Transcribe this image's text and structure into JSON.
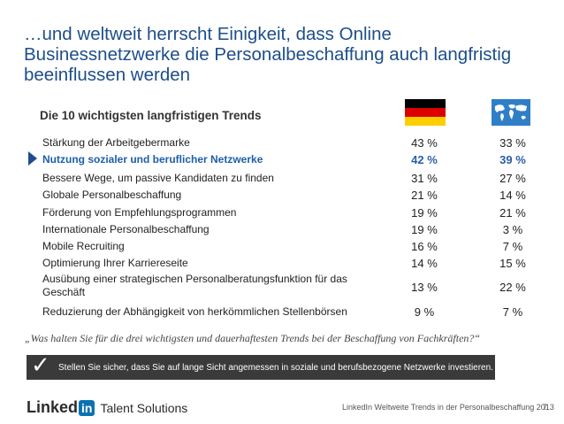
{
  "title": {
    "lines": [
      "…und weltweit herrscht Einigkeit, dass Online",
      "Businessnetzwerke die Personalbeschaffung auch langfristig",
      "beeinflussen werden"
    ]
  },
  "subheading": "Die 10 wichtigsten langfristigen Trends",
  "colors": {
    "accent": "#1d4e8a",
    "highlight": "#2a5fa8",
    "banner": "#3a3a3a",
    "linkedin_blue": "#0a73b1"
  },
  "rows": [
    {
      "label": "Stärkung der Arbeitgebermarke",
      "germany": "43 %",
      "worldwide": "33 %"
    },
    {
      "label": "Nutzung sozialer und beruflicher Netzwerke",
      "germany": "42 %",
      "worldwide": "39 %"
    },
    {
      "label": "Bessere Wege, um passive Kandidaten zu finden",
      "germany": "31 %",
      "worldwide": "27 %"
    },
    {
      "label": "Globale Personalbeschaffung",
      "germany": "21 %",
      "worldwide": "14 %"
    },
    {
      "label": "Förderung von Empfehlungsprogrammen",
      "germany": "19 %",
      "worldwide": "21 %"
    },
    {
      "label": "Internationale Personalbeschaffung",
      "germany": "19 %",
      "worldwide": "3 %"
    },
    {
      "label": "Mobile Recruiting",
      "germany": "16 %",
      "worldwide": "7 %"
    },
    {
      "label": "Optimierung Ihrer Karriereseite",
      "germany": "14 %",
      "worldwide": "15 %"
    },
    {
      "label": "Ausübung einer strategischen Personalberatungsfunktion für das Geschäft",
      "germany": "13 %",
      "worldwide": "22 %"
    },
    {
      "label": "Reduzierung der Abhängigkeit von herkömmlichen Stellenbörsen",
      "germany": "9 %",
      "worldwide": "7 %"
    }
  ],
  "quote": "„Was halten Sie für die drei wichtigsten und dauerhaftesten Trends bei der Beschaffung von Fachkräften?“",
  "banner_text": "Stellen Sie sicher, dass Sie auf lange Sicht angemessen in soziale und berufsbezogene Netzwerke investieren.",
  "logo": {
    "linked": "Linked",
    "in": "in",
    "tagline": "Talent Solutions"
  },
  "footer": "LinkedIn Weltweite Trends in der Personalbeschaffung 2013",
  "page_number": "7"
}
